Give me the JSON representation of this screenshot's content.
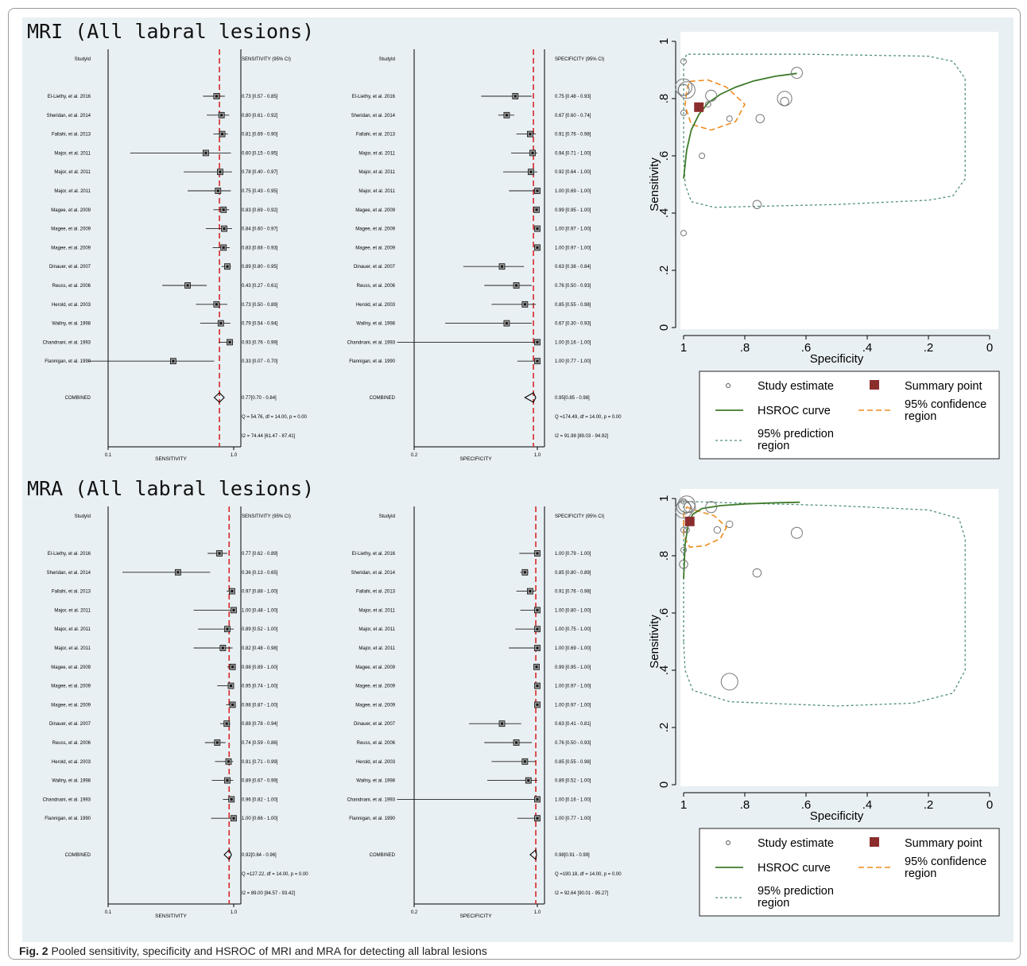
{
  "caption": {
    "label": "Fig. 2",
    "text": "Pooled sensitivity, specificity and HSROC of MRI and MRA for detecting all labral lesions"
  },
  "colors": {
    "panel_bg": "#e9f0f3",
    "ref_line": "#d62728",
    "hsroc": "#3d7a2a",
    "confidence": "#f08c1e",
    "prediction": "#4f8f7d",
    "summary_point": "#8b2d2d"
  },
  "chart_data": [
    {
      "type": "forest",
      "panel": "mri",
      "title": "MRI (All labral lesions)",
      "studies": [
        "El-Liethy, et al. 2016",
        "Sheridan, et al. 2014",
        "Fallahi, et al. 2013",
        "Major, et al. 2011",
        "Major, et al. 2011",
        "Major, et al. 2011",
        "Magee, et al. 2009",
        "Magee, et al. 2009",
        "Magee, et al. 2009",
        "Dinauer, et al. 2007",
        "Reuss, et al. 2006",
        "Herold, et al. 2003",
        "Wallny, et al. 1998",
        "Chandnani, et al. 1993",
        "Flannigan, et al. 1990"
      ],
      "sensitivity": {
        "col_header": "SENSITIVITY (95% CI)",
        "study_header": "StudyId",
        "xlabel": "SENSITIVITY",
        "log_scale": true,
        "xlim": [
          0.1,
          1.0
        ],
        "ticks": [
          "0.1",
          "1.0"
        ],
        "point": [
          0.73,
          0.8,
          0.81,
          0.6,
          0.78,
          0.75,
          0.83,
          0.84,
          0.83,
          0.89,
          0.43,
          0.73,
          0.79,
          0.93,
          0.33
        ],
        "lo": [
          0.57,
          0.61,
          0.69,
          0.15,
          0.4,
          0.43,
          0.69,
          0.6,
          0.68,
          0.8,
          0.27,
          0.5,
          0.54,
          0.76,
          0.07
        ],
        "hi": [
          0.85,
          0.92,
          0.9,
          0.95,
          0.97,
          0.95,
          0.92,
          0.97,
          0.93,
          0.95,
          0.61,
          0.89,
          0.94,
          0.99,
          0.7
        ],
        "ci_text": [
          "0.73 [0.57 - 0.85]",
          "0.80 [0.61 - 0.92]",
          "0.81 [0.69 - 0.90]",
          "0.60 [0.15 - 0.95]",
          "0.78 [0.40 - 0.97]",
          "0.75 [0.43 - 0.95]",
          "0.83 [0.69 - 0.92]",
          "0.84 [0.60 - 0.97]",
          "0.83 [0.68 - 0.93]",
          "0.89 [0.80 - 0.95]",
          "0.43 [0.27 - 0.61]",
          "0.73 [0.50 - 0.89]",
          "0.79 [0.54 - 0.94]",
          "0.93 [0.76 - 0.99]",
          "0.33 [0.07 - 0.70]"
        ],
        "combined": {
          "point": 0.77,
          "lo": 0.7,
          "hi": 0.84,
          "text": "0.77[0.70 - 0.84]"
        },
        "q_text": "Q = 54.76, df = 14.00, p =  0.00",
        "i2_text": "I2 = 74.44 [61.47 - 87.41]"
      },
      "specificity": {
        "col_header": "SPECIFICITY (95% CI)",
        "study_header": "StudyId",
        "xlabel": "SPECIFICITY",
        "log_scale": true,
        "xlim": [
          0.2,
          1.0
        ],
        "ticks": [
          "0.2",
          "1.0"
        ],
        "point": [
          0.75,
          0.67,
          0.91,
          0.94,
          0.92,
          1.0,
          0.99,
          1.0,
          1.0,
          0.63,
          0.76,
          0.85,
          0.67,
          1.0,
          1.0
        ],
        "lo": [
          0.48,
          0.6,
          0.76,
          0.71,
          0.64,
          0.69,
          0.95,
          0.97,
          0.97,
          0.38,
          0.5,
          0.55,
          0.3,
          0.16,
          0.77
        ],
        "hi": [
          0.93,
          0.74,
          0.98,
          1.0,
          1.0,
          1.0,
          1.0,
          1.0,
          1.0,
          0.84,
          0.93,
          0.98,
          0.93,
          1.0,
          1.0
        ],
        "ci_text": [
          "0.75 [0.48 - 0.93]",
          "0.67 [0.60 - 0.74]",
          "0.91 [0.76 - 0.98]",
          "0.94 [0.71 - 1.00]",
          "0.92 [0.64 - 1.00]",
          "1.00 [0.69 - 1.00]",
          "0.99 [0.95 - 1.00]",
          "1.00 [0.97 - 1.00]",
          "1.00 [0.97 - 1.00]",
          "0.63 [0.38 - 0.84]",
          "0.76 [0.50 - 0.93]",
          "0.85 [0.55 - 0.98]",
          "0.67 [0.30 - 0.93]",
          "1.00 [0.16 - 1.00]",
          "1.00 [0.77 - 1.00]"
        ],
        "combined": {
          "point": 0.95,
          "lo": 0.85,
          "hi": 0.98,
          "text": "0.95[0.85 - 0.98]"
        },
        "q_text": "Q =174.49, df = 14.00, p =  0.00",
        "i2_text": "I2 = 91.98 [89.03 - 94.92]"
      },
      "sroc": {
        "type": "scatter",
        "xlabel": "Specificity",
        "ylabel": "Sensitivity",
        "xlim": [
          1,
          0
        ],
        "ylim": [
          0,
          1
        ],
        "x_ticks": [
          "1",
          ".8",
          ".6",
          ".4",
          ".2",
          "0"
        ],
        "y_ticks": [
          "0",
          ".2",
          ".4",
          ".6",
          ".8",
          "1"
        ],
        "studies": [
          {
            "spec": 1.0,
            "sens": 0.93,
            "size": 1
          },
          {
            "spec": 1.0,
            "sens": 0.84,
            "size": 3
          },
          {
            "spec": 0.99,
            "sens": 0.83,
            "size": 3
          },
          {
            "spec": 1.0,
            "sens": 0.83,
            "size": 2
          },
          {
            "spec": 1.0,
            "sens": 0.75,
            "size": 1
          },
          {
            "spec": 0.94,
            "sens": 0.6,
            "size": 1
          },
          {
            "spec": 0.92,
            "sens": 0.78,
            "size": 1
          },
          {
            "spec": 0.91,
            "sens": 0.81,
            "size": 2
          },
          {
            "spec": 0.85,
            "sens": 0.73,
            "size": 1
          },
          {
            "spec": 0.76,
            "sens": 0.43,
            "size": 1.5
          },
          {
            "spec": 0.75,
            "sens": 0.73,
            "size": 1.5
          },
          {
            "spec": 0.67,
            "sens": 0.8,
            "size": 2.6
          },
          {
            "spec": 0.67,
            "sens": 0.79,
            "size": 1.5
          },
          {
            "spec": 0.63,
            "sens": 0.89,
            "size": 2
          },
          {
            "spec": 1.0,
            "sens": 0.33,
            "size": 1
          }
        ],
        "summary_point": {
          "spec": 0.95,
          "sens": 0.77
        },
        "hsroc_curve": [
          [
            1.0,
            0.52
          ],
          [
            0.99,
            0.62
          ],
          [
            0.975,
            0.69
          ],
          [
            0.95,
            0.745
          ],
          [
            0.92,
            0.785
          ],
          [
            0.88,
            0.815
          ],
          [
            0.83,
            0.84
          ],
          [
            0.77,
            0.862
          ],
          [
            0.7,
            0.878
          ],
          [
            0.63,
            0.888
          ]
        ],
        "confidence_region": [
          [
            0.98,
            0.86
          ],
          [
            0.92,
            0.865
          ],
          [
            0.86,
            0.84
          ],
          [
            0.8,
            0.78
          ],
          [
            0.83,
            0.72
          ],
          [
            0.91,
            0.69
          ],
          [
            0.975,
            0.71
          ],
          [
            0.995,
            0.775
          ],
          [
            0.99,
            0.83
          ]
        ],
        "prediction_region": [
          [
            1.0,
            0.88
          ],
          [
            1.0,
            0.93
          ],
          [
            0.99,
            0.955
          ],
          [
            0.6,
            0.955
          ],
          [
            0.2,
            0.948
          ],
          [
            0.12,
            0.93
          ],
          [
            0.08,
            0.87
          ],
          [
            0.08,
            0.52
          ],
          [
            0.12,
            0.46
          ],
          [
            0.2,
            0.445
          ],
          [
            0.5,
            0.43
          ],
          [
            0.9,
            0.42
          ],
          [
            0.975,
            0.44
          ],
          [
            0.995,
            0.5
          ],
          [
            1.0,
            0.6
          ]
        ],
        "legend": {
          "study": "Study estimate",
          "summary": "Summary point",
          "hsroc": "HSROC curve",
          "ci_a": "95% confidence",
          "ci_b": "region",
          "pred_a": "95% prediction",
          "pred_b": "region"
        }
      }
    },
    {
      "type": "forest",
      "panel": "mra",
      "title": "MRA (All labral lesions)",
      "studies": [
        "El-Liethy, et al. 2016",
        "Sheridan, et al. 2014",
        "Fallahi, et al. 2013",
        "Major, et al. 2011",
        "Major, et al. 2011",
        "Major, et al. 2011",
        "Magee, et al. 2009",
        "Magee, et al. 2009",
        "Magee, et al. 2009",
        "Dinauer, et al. 2007",
        "Reuss, et al. 2006",
        "Herold, et al. 2003",
        "Wallny, et al. 1998",
        "Chandnani, et al. 1993",
        "Flannigan, et al. 1990"
      ],
      "sensitivity": {
        "col_header": "SENSITIVITY (95% CI)",
        "study_header": "StudyId",
        "xlabel": "SENSITIVITY",
        "log_scale": true,
        "xlim": [
          0.1,
          1.0
        ],
        "ticks": [
          "0.1",
          "1.0"
        ],
        "point": [
          0.77,
          0.36,
          0.97,
          1.0,
          0.89,
          0.82,
          0.98,
          0.95,
          0.98,
          0.88,
          0.74,
          0.91,
          0.89,
          0.96,
          1.0
        ],
        "lo": [
          0.62,
          0.13,
          0.88,
          0.48,
          0.52,
          0.48,
          0.89,
          0.74,
          0.87,
          0.78,
          0.59,
          0.71,
          0.67,
          0.82,
          0.66
        ],
        "hi": [
          0.89,
          0.65,
          1.0,
          1.0,
          1.0,
          0.98,
          1.0,
          1.0,
          1.0,
          0.94,
          0.86,
          0.99,
          0.99,
          1.0,
          1.0
        ],
        "ci_text": [
          "0.77 [0.62 - 0.89]",
          "0.36 [0.13 - 0.65]",
          "0.97 [0.88 - 1.00]",
          "1.00 [0.48 - 1.00]",
          "0.89 [0.52 - 1.00]",
          "0.82 [0.48 - 0.98]",
          "0.98 [0.89 - 1.00]",
          "0.95 [0.74 - 1.00]",
          "0.98 [0.87 - 1.00]",
          "0.88 [0.78 - 0.94]",
          "0.74 [0.59 - 0.86]",
          "0.91 [0.71 - 0.99]",
          "0.89 [0.67 - 0.99]",
          "0.96 [0.82 - 1.00]",
          "1.00 [0.66 - 1.00]"
        ],
        "combined": {
          "point": 0.92,
          "lo": 0.84,
          "hi": 0.96,
          "text": "0.92[0.84 - 0.96]"
        },
        "q_text": "Q =127.22, df = 14.00, p =  0.00",
        "i2_text": "I2 = 89.00 [84.57 - 93.42]"
      },
      "specificity": {
        "col_header": "SPECIFICITY (95% CI)",
        "study_header": "StudyId",
        "xlabel": "SPECIFICITY",
        "log_scale": true,
        "xlim": [
          0.2,
          1.0
        ],
        "ticks": [
          "0.2",
          "1.0"
        ],
        "point": [
          1.0,
          0.85,
          0.91,
          1.0,
          1.0,
          1.0,
          0.99,
          1.0,
          1.0,
          0.63,
          0.76,
          0.85,
          0.89,
          1.0,
          1.0
        ],
        "lo": [
          0.79,
          0.8,
          0.76,
          0.8,
          0.75,
          0.69,
          0.95,
          0.97,
          0.97,
          0.41,
          0.5,
          0.55,
          0.52,
          0.16,
          0.77
        ],
        "hi": [
          1.0,
          0.89,
          0.98,
          1.0,
          1.0,
          1.0,
          1.0,
          1.0,
          1.0,
          0.81,
          0.93,
          0.98,
          1.0,
          1.0,
          1.0
        ],
        "ci_text": [
          "1.00 [0.79 - 1.00]",
          "0.85 [0.80 - 0.89]",
          "0.91 [0.76 - 0.98]",
          "1.00 [0.80 - 1.00]",
          "1.00 [0.75 - 1.00]",
          "1.00 [0.69 - 1.00]",
          "0.99 [0.95 - 1.00]",
          "1.00 [0.97 - 1.00]",
          "1.00 [0.97 - 1.00]",
          "0.63 [0.41 - 0.81]",
          "0.76 [0.50 - 0.93]",
          "0.85 [0.55 - 0.98]",
          "0.89 [0.52 - 1.00]",
          "1.00 [0.16 - 1.00]",
          "1.00 [0.77 - 1.00]"
        ],
        "combined": {
          "point": 0.98,
          "lo": 0.91,
          "hi": 0.99,
          "text": "0.98[0.91 - 0.99]"
        },
        "q_text": "Q =190.18, df = 14.00, p =  0.00",
        "i2_text": "I2 = 92.64 [90.01 - 95.27]"
      },
      "sroc": {
        "type": "scatter",
        "xlabel": "Specificity",
        "ylabel": "Sensitivity",
        "xlim": [
          1,
          0
        ],
        "ylim": [
          0,
          1
        ],
        "x_ticks": [
          "1",
          ".8",
          ".6",
          ".4",
          ".2",
          "0"
        ],
        "y_ticks": [
          "0",
          ".2",
          ".4",
          ".6",
          ".8",
          "1"
        ],
        "studies": [
          {
            "spec": 1.0,
            "sens": 0.99,
            "size": 1
          },
          {
            "spec": 0.99,
            "sens": 0.98,
            "size": 3
          },
          {
            "spec": 1.0,
            "sens": 0.96,
            "size": 3
          },
          {
            "spec": 1.0,
            "sens": 0.97,
            "size": 2.5
          },
          {
            "spec": 0.98,
            "sens": 0.97,
            "size": 2
          },
          {
            "spec": 0.91,
            "sens": 0.97,
            "size": 2
          },
          {
            "spec": 1.0,
            "sens": 0.89,
            "size": 1
          },
          {
            "spec": 0.99,
            "sens": 0.89,
            "size": 1
          },
          {
            "spec": 1.0,
            "sens": 0.82,
            "size": 1
          },
          {
            "spec": 1.0,
            "sens": 0.77,
            "size": 1.5
          },
          {
            "spec": 0.89,
            "sens": 0.89,
            "size": 1.2
          },
          {
            "spec": 0.85,
            "sens": 0.91,
            "size": 1.2
          },
          {
            "spec": 0.63,
            "sens": 0.88,
            "size": 2
          },
          {
            "spec": 0.76,
            "sens": 0.74,
            "size": 1.5
          },
          {
            "spec": 0.85,
            "sens": 0.36,
            "size": 3
          }
        ],
        "summary_point": {
          "spec": 0.98,
          "sens": 0.92
        },
        "hsroc_curve": [
          [
            1.0,
            0.72
          ],
          [
            0.995,
            0.84
          ],
          [
            0.985,
            0.91
          ],
          [
            0.97,
            0.945
          ],
          [
            0.94,
            0.965
          ],
          [
            0.88,
            0.975
          ],
          [
            0.8,
            0.981
          ],
          [
            0.7,
            0.985
          ],
          [
            0.62,
            0.987
          ]
        ],
        "confidence_region": [
          [
            0.99,
            0.97
          ],
          [
            0.95,
            0.955
          ],
          [
            0.9,
            0.94
          ],
          [
            0.86,
            0.9
          ],
          [
            0.88,
            0.86
          ],
          [
            0.93,
            0.835
          ],
          [
            0.98,
            0.83
          ],
          [
            1.0,
            0.87
          ],
          [
            1.0,
            0.94
          ]
        ],
        "prediction_region": [
          [
            1.0,
            0.5
          ],
          [
            1.0,
            0.99
          ],
          [
            0.85,
            0.985
          ],
          [
            0.5,
            0.975
          ],
          [
            0.2,
            0.96
          ],
          [
            0.1,
            0.93
          ],
          [
            0.08,
            0.86
          ],
          [
            0.08,
            0.4
          ],
          [
            0.12,
            0.32
          ],
          [
            0.25,
            0.285
          ],
          [
            0.5,
            0.275
          ],
          [
            0.85,
            0.29
          ],
          [
            0.97,
            0.33
          ],
          [
            0.995,
            0.4
          ]
        ],
        "legend": {
          "study": "Study estimate",
          "summary": "Summary point",
          "hsroc": "HSROC curve",
          "ci_a": "95% confidence",
          "ci_b": "region",
          "pred_a": "95% prediction",
          "pred_b": "region"
        }
      }
    }
  ]
}
